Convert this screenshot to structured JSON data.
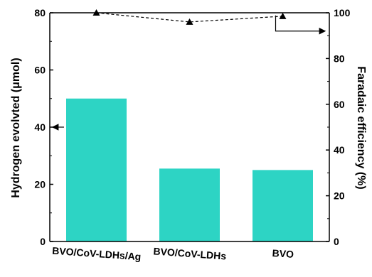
{
  "chart_data": {
    "type": "bar",
    "categories": [
      "BVO/CoV-LDHs/Ag",
      "BVO/CoV-LDHs",
      "BVO"
    ],
    "series": [
      {
        "values": [
          50,
          25.5,
          25
        ],
        "axis": "left",
        "style": "bar",
        "color": "#2dd4c4"
      },
      {
        "values": [
          100,
          96,
          98.5
        ],
        "axis": "right",
        "style": "dashed-line-triangle-markers",
        "color": "#000000"
      }
    ],
    "ylabel": "Hydrogen evolvted (μmol)",
    "ylabel_right": "Faradaic efficiency (%)",
    "ylim": [
      0,
      80
    ],
    "ylim_right": [
      0,
      100
    ],
    "yticks": [
      "0",
      "20",
      "40",
      "60",
      "80"
    ],
    "yticks_right": [
      "0",
      "20",
      "40",
      "60",
      "80",
      "100"
    ],
    "grid": false,
    "annotations": [
      {
        "type": "arrow",
        "points_to": "left axis",
        "near_value": 40
      },
      {
        "type": "arrow",
        "points_to": "right axis",
        "near_value": 92
      }
    ]
  }
}
